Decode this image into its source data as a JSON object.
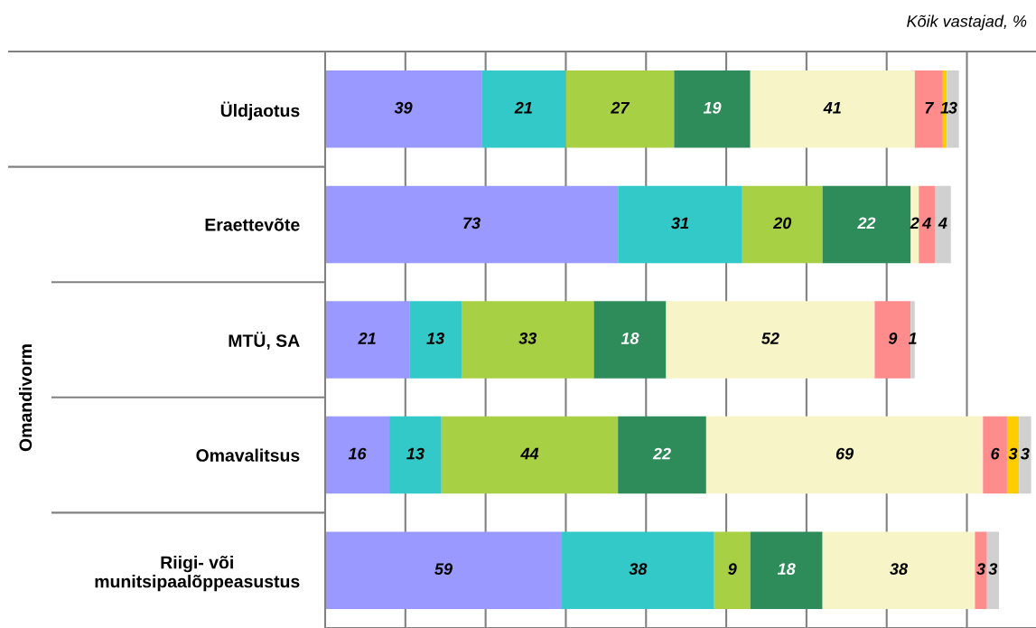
{
  "chart_data": {
    "type": "bar",
    "orientation": "horizontal",
    "stacked": true,
    "subtitle": "Kõik vastajad, %",
    "annotations": [
      "Omandivorm"
    ],
    "categories": [
      "Üldjaotus",
      "Eraettevõte",
      "MTÜ, SA",
      "Omavalitsus",
      "Riigi- või\nmunitsipaalõppeasustus"
    ],
    "series": [
      {
        "color": "#9999ff",
        "values": [
          39,
          73,
          21,
          16,
          59
        ]
      },
      {
        "color": "#33c9c9",
        "values": [
          21,
          31,
          13,
          13,
          38
        ]
      },
      {
        "color": "#a8d045",
        "values": [
          27,
          20,
          33,
          44,
          9
        ]
      },
      {
        "color": "#2e8b5a",
        "values": [
          19,
          22,
          18,
          22,
          18
        ]
      },
      {
        "color": "#f7f5c8",
        "values": [
          41,
          2,
          52,
          69,
          38
        ]
      },
      {
        "color": "#ff8c8c",
        "values": [
          7,
          4,
          9,
          6,
          3
        ]
      },
      {
        "color": "#ffcc00",
        "values": [
          1,
          null,
          null,
          3,
          null
        ]
      },
      {
        "color": "#d0d0d0",
        "values": [
          3,
          4,
          1,
          3,
          3
        ]
      }
    ],
    "xlim": [
      0,
      177
    ],
    "xticks": [
      {
        "value": 20,
        "label": null
      },
      {
        "value": 40,
        "label": null
      },
      {
        "value": 60,
        "label": null
      },
      {
        "value": 80,
        "label": null
      },
      {
        "value": 100,
        "label": null
      },
      {
        "value": 120,
        "label": null
      },
      {
        "value": 140,
        "label": null
      },
      {
        "value": 160,
        "label": null
      }
    ],
    "grid": "x",
    "tick_labels": "y",
    "data_labels": true,
    "legend": false
  }
}
